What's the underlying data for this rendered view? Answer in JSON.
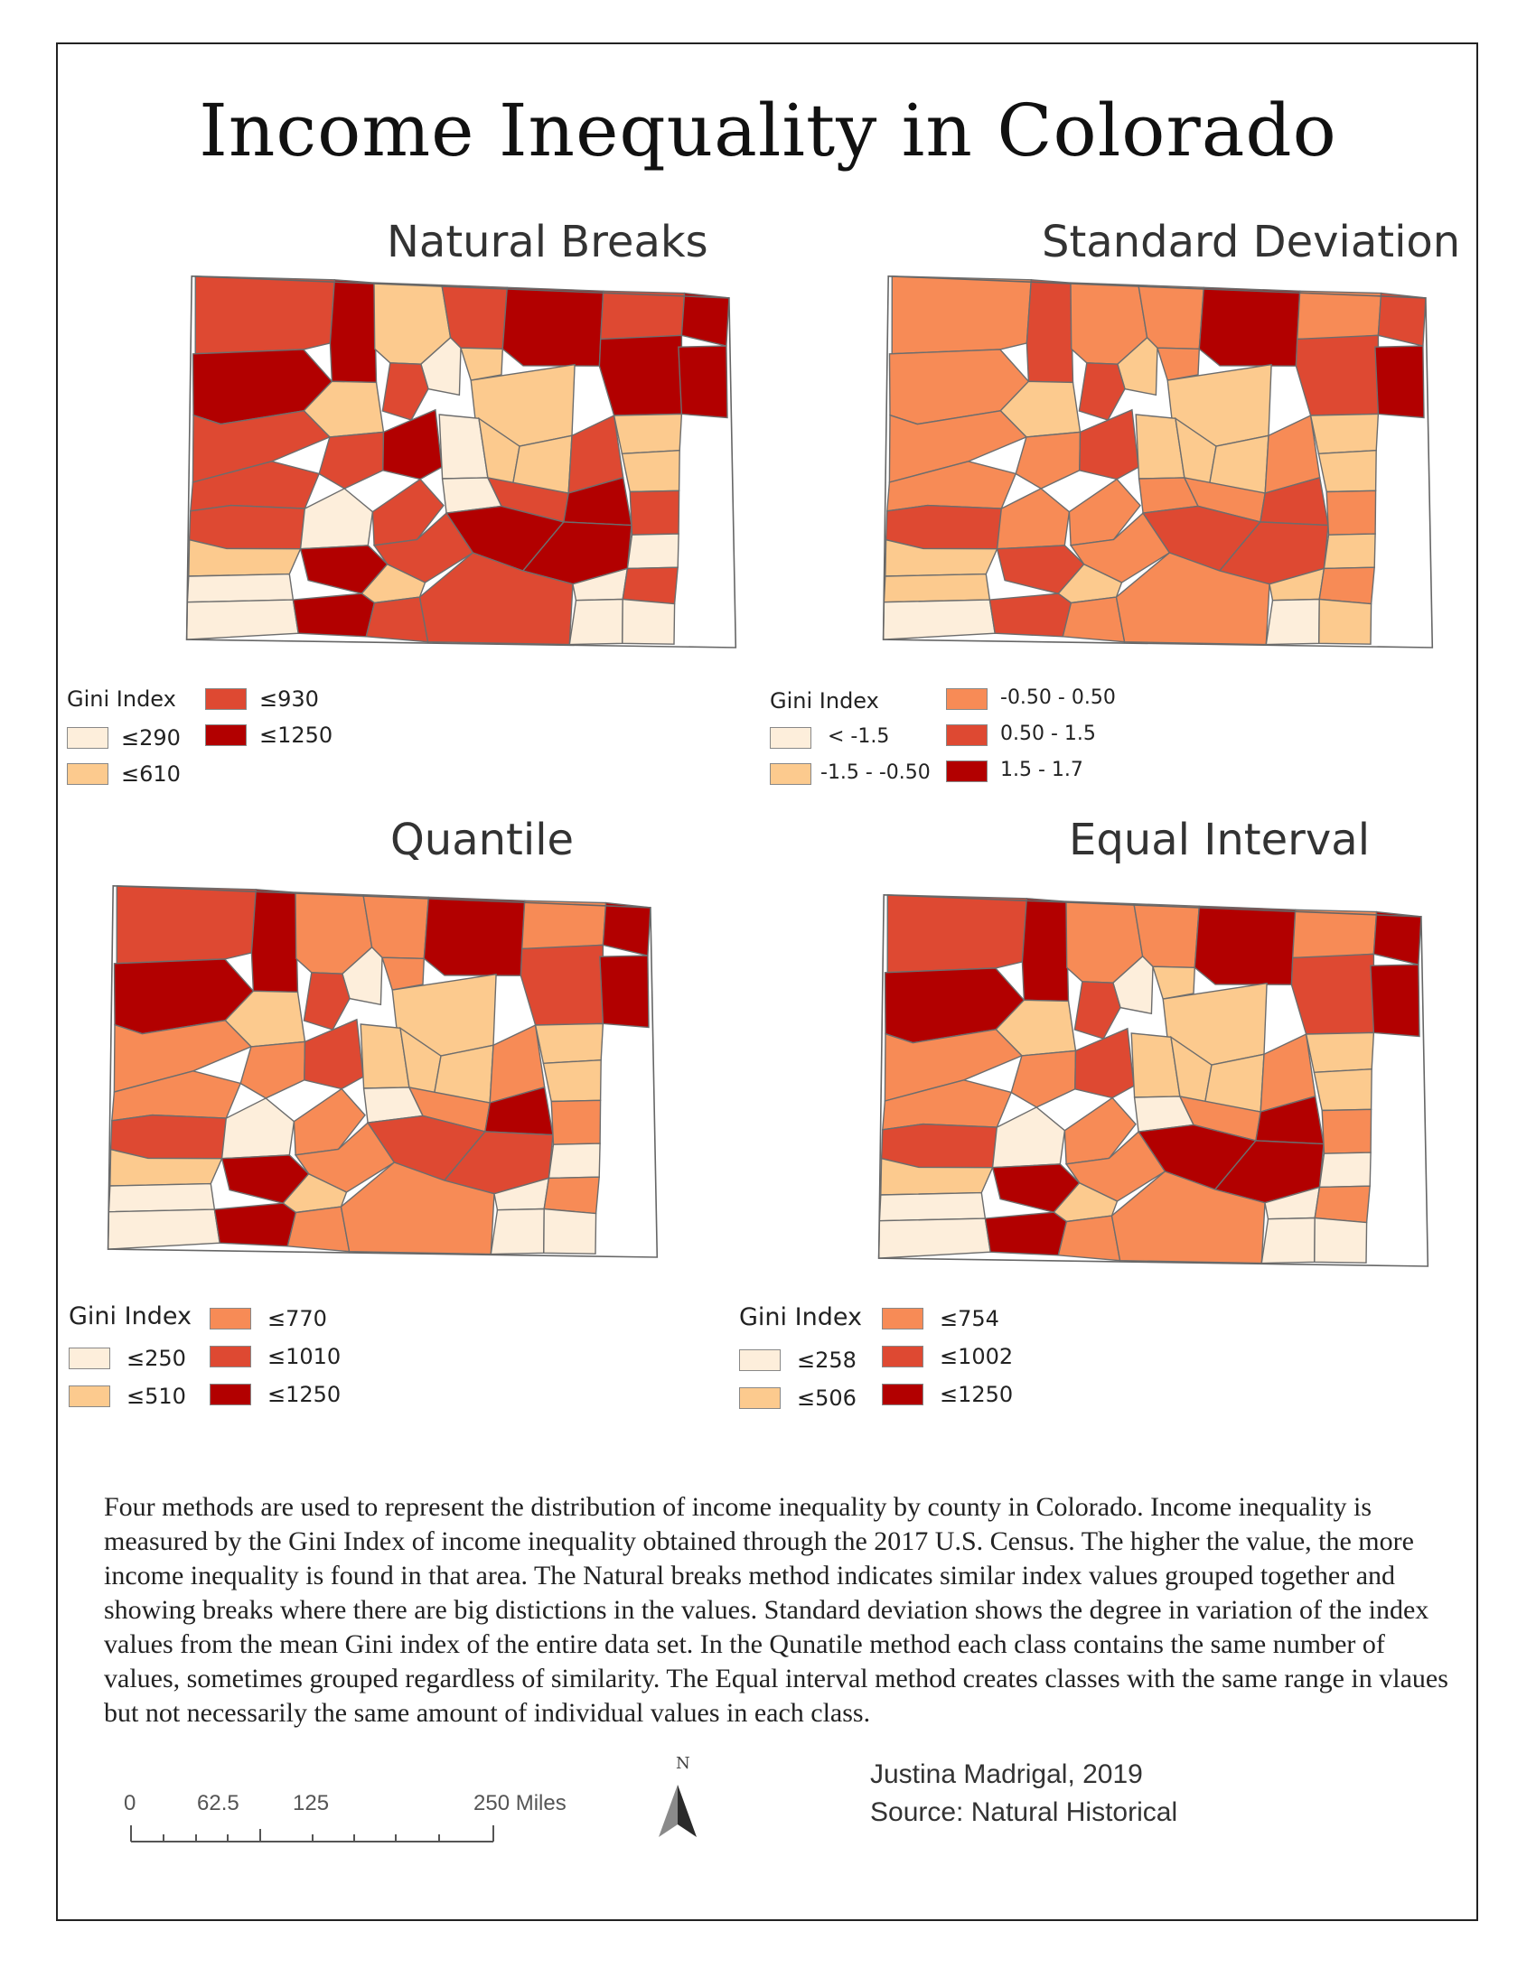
{
  "title": "Income Inequality in Colorado",
  "colors": {
    "c1": "#fdeedb",
    "c2": "#fcca8e",
    "c3": "#f78b56",
    "c4": "#de4932",
    "c5": "#b20000"
  },
  "maps": [
    {
      "title": "Natural Breaks",
      "legend_title": "Gini Index",
      "classes": [
        "≤290",
        "≤610",
        "≤930",
        "≤1250"
      ],
      "fills": [
        "c4",
        "c5",
        "c2",
        "c4",
        "c5",
        "c4",
        "c5",
        "c5",
        "c2",
        "c1",
        "c4",
        "c2",
        "c2",
        "c5",
        "c5",
        "c4",
        "c4",
        "c4",
        "c5",
        "c1",
        "c2",
        "c2",
        "c4",
        "c2",
        "c4",
        "c1",
        "c4",
        "c1",
        "c4",
        "c5",
        "c2",
        "c2",
        "c5",
        "c1",
        "c4",
        "c5",
        "c2",
        "c5",
        "c4",
        "c1",
        "c1",
        "c5",
        "c4",
        "c4",
        "c1",
        "c1",
        "c4",
        "c1"
      ]
    },
    {
      "title": "Standard Deviation",
      "legend_title": "Gini Index",
      "classes": [
        "< -1.5",
        "-1.5 - -0.50",
        "-0.50 - 0.50",
        "0.50 - 1.5",
        "1.5 - 1.7"
      ],
      "fills": [
        "c3",
        "c4",
        "c3",
        "c3",
        "c5",
        "c3",
        "c4",
        "c3",
        "c2",
        "c2",
        "c4",
        "c3",
        "c2",
        "c4",
        "c5",
        "c3",
        "c3",
        "c3",
        "c4",
        "c2",
        "c2",
        "c2",
        "c3",
        "c2",
        "c4",
        "c3",
        "c3",
        "c3",
        "c3",
        "c4",
        "c2",
        "c2",
        "c4",
        "c2",
        "c3",
        "c4",
        "c2",
        "c4",
        "c3",
        "c2",
        "c1",
        "c4",
        "c3",
        "c3",
        "c2",
        "c1",
        "c3",
        "c2"
      ]
    },
    {
      "title": "Quantile",
      "legend_title": "Gini Index",
      "classes": [
        "≤250",
        "≤510",
        "≤770",
        "≤1010",
        "≤1250"
      ],
      "fills": [
        "c4",
        "c5",
        "c3",
        "c3",
        "c5",
        "c3",
        "c5",
        "c5",
        "c2",
        "c1",
        "c4",
        "c3",
        "c2",
        "c4",
        "c5",
        "c3",
        "c3",
        "c3",
        "c4",
        "c2",
        "c2",
        "c2",
        "c3",
        "c2",
        "c4",
        "c1",
        "c3",
        "c1",
        "c3",
        "c5",
        "c2",
        "c2",
        "c5",
        "c1",
        "c3",
        "c4",
        "c2",
        "c4",
        "c3",
        "c1",
        "c1",
        "c5",
        "c3",
        "c3",
        "c1",
        "c1",
        "c3",
        "c1"
      ]
    },
    {
      "title": "Equal Interval",
      "legend_title": "Gini Index",
      "classes": [
        "≤258",
        "≤506",
        "≤754",
        "≤1002",
        "≤1250"
      ],
      "fills": [
        "c4",
        "c5",
        "c3",
        "c3",
        "c5",
        "c3",
        "c5",
        "c5",
        "c2",
        "c1",
        "c4",
        "c2",
        "c2",
        "c4",
        "c5",
        "c3",
        "c3",
        "c3",
        "c4",
        "c2",
        "c2",
        "c2",
        "c3",
        "c2",
        "c4",
        "c1",
        "c3",
        "c1",
        "c3",
        "c5",
        "c2",
        "c2",
        "c5",
        "c1",
        "c3",
        "c5",
        "c2",
        "c5",
        "c3",
        "c1",
        "c1",
        "c5",
        "c3",
        "c3",
        "c1",
        "c1",
        "c3",
        "c1"
      ]
    }
  ],
  "description": "Four methods are used to represent the distribution of income inequality by county in Colorado. Income inequality is measured by the Gini Index of income inequality obtained through the 2017 U.S. Census. The higher the value, the more income inequality is found in that area. The Natural breaks method indicates similar index values grouped together and showing breaks where there are big distictions in the values. Standard deviation shows the degree in variation of the index values from the mean Gini index of the entire data set.  In the Qunatile method each class contains the same number of values, sometimes grouped regardless of similarity. The Equal interval method creates classes with the same range in vlaues but not necessarily the same amount of individual values in each class.",
  "scale_bar": {
    "labels": [
      "0",
      "62.5",
      "125",
      "250 Miles"
    ]
  },
  "north_arrow": {
    "label": "N",
    "icon": "north-arrow-icon"
  },
  "credits": {
    "author": "Justina Madrigal, 2019",
    "source": "Source: Natural Historical"
  }
}
